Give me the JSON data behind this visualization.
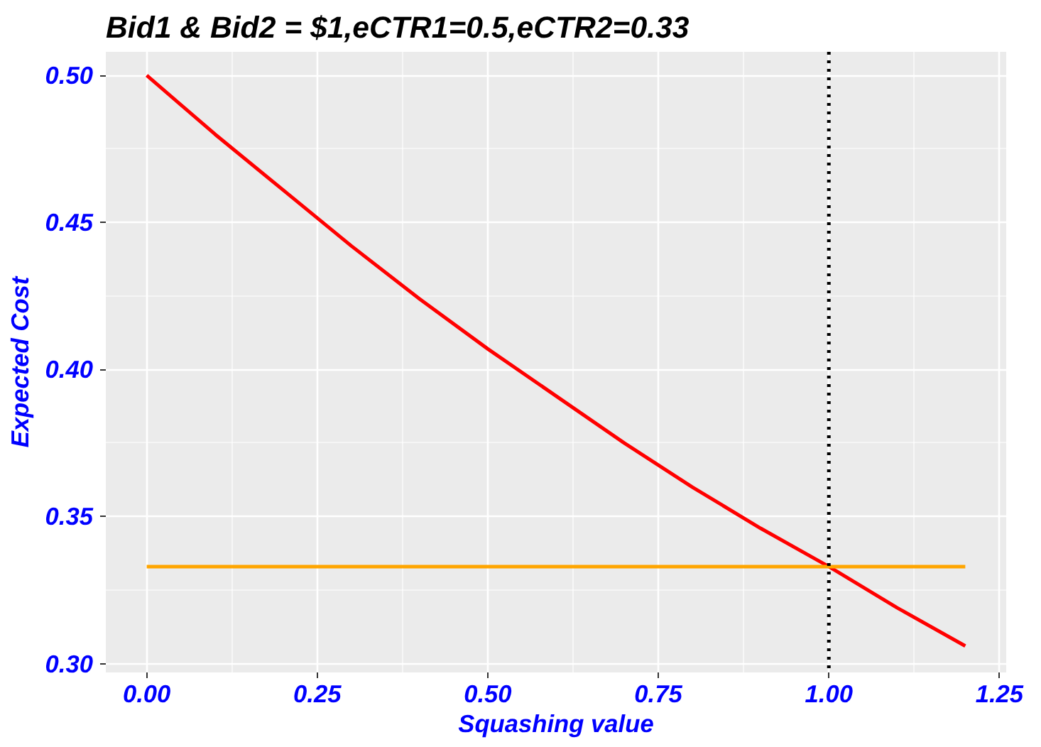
{
  "chart_data": {
    "type": "line",
    "title": "Bid1 & Bid2 = $1,eCTR1=0.5,eCTR2=0.33",
    "xlabel": "Squashing value",
    "ylabel": "Expected Cost",
    "series": [
      {
        "color": "#ff0000",
        "x": [
          0,
          0.1,
          0.2,
          0.3,
          0.4,
          0.5,
          0.6,
          0.7,
          0.8,
          0.9,
          1.0,
          1.1,
          1.2
        ],
        "values": [
          0.5,
          0.48,
          0.461,
          0.442,
          0.424,
          0.407,
          0.391,
          0.375,
          0.36,
          0.346,
          0.333,
          0.319,
          0.306
        ]
      },
      {
        "color": "#ffa500",
        "x": [
          0,
          1.2
        ],
        "values": [
          0.333,
          0.333
        ]
      }
    ],
    "ref_lines": [
      {
        "axis": "x",
        "value": 1.0,
        "color": "#000000",
        "line_style": "dotted"
      }
    ],
    "xlim": [
      -0.06,
      1.26
    ],
    "ylim": [
      0.297,
      0.508
    ],
    "xticks": [
      {
        "value": 0,
        "label": "0.00"
      },
      0.25,
      {
        "value": 0.5,
        "label": "0.50"
      },
      0.75,
      {
        "value": 1,
        "label": "1.00"
      },
      1.25
    ],
    "yticks": [
      {
        "value": 0.3,
        "label": "0.30"
      },
      0.35,
      {
        "value": 0.4,
        "label": "0.40"
      },
      0.45,
      {
        "value": 0.5,
        "label": "0.50"
      }
    ],
    "grid": true,
    "line_style": "solid",
    "marker": "none"
  }
}
